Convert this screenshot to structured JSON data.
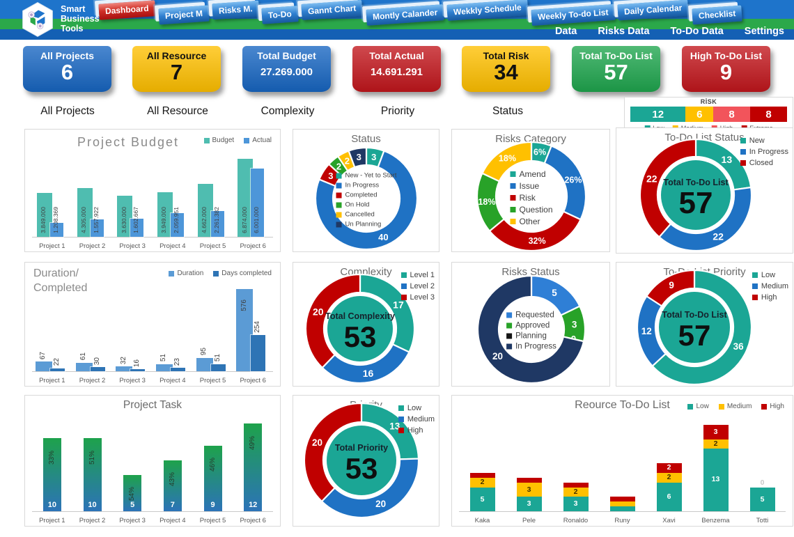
{
  "header": {
    "logo": {
      "line1": "Smart",
      "line2": "Business",
      "line3": "Tools"
    },
    "nav_buttons": [
      {
        "label": "Dashboard",
        "active": true
      },
      {
        "label": "Project M"
      },
      {
        "label": "Risks M."
      },
      {
        "label": "To-Do"
      },
      {
        "label": "Gannt Chart"
      },
      {
        "label": "Montly Calander"
      },
      {
        "label": "Wekkly Schedule"
      },
      {
        "label": "Weekly To-do List"
      },
      {
        "label": "Daily Calendar"
      },
      {
        "label": "Checklist"
      }
    ],
    "sub_links": [
      "Data",
      "Risks Data",
      "To-Do Data",
      "Settings"
    ]
  },
  "kpi_cards": [
    {
      "title": "All Projects",
      "value": "6",
      "color": "#1766C2",
      "text_color": "#ffffff"
    },
    {
      "title": "All Resource",
      "value": "7",
      "color": "#FFC000",
      "text_color": "#111111"
    },
    {
      "title": "Total Budget",
      "value": "27.269.000",
      "color": "#1766C2",
      "text_color": "#ffffff"
    },
    {
      "title": "Total Actual",
      "value": "14.691.291",
      "color": "#C2161C",
      "text_color": "#ffffff"
    },
    {
      "title": "Total Risk",
      "value": "34",
      "color": "#FFC000",
      "text_color": "#111111"
    },
    {
      "title": "Total To-Do List",
      "value": "57",
      "color": "#1FA64E",
      "text_color": "#ffffff"
    },
    {
      "title": "High To-Do List",
      "value": "9",
      "color": "#C2161C",
      "text_color": "#ffffff"
    }
  ],
  "slicer_labels": [
    "All Projects",
    "All Resource",
    "Complexity",
    "Priority",
    "Status"
  ],
  "chart_data": [
    {
      "id": "risk-mini",
      "type": "bar",
      "subtype": "stacked-horizontal",
      "title": "RİSK",
      "categories": [
        "Risk"
      ],
      "series": [
        {
          "name": "Low",
          "color": "#1BA695",
          "values": [
            12
          ]
        },
        {
          "name": "Medium",
          "color": "#FFC000",
          "values": [
            6
          ]
        },
        {
          "name": "High",
          "color": "#F2545B",
          "values": [
            8
          ]
        },
        {
          "name": "Extreme",
          "color": "#C00000",
          "values": [
            8
          ]
        }
      ],
      "legend_position": "bottom"
    },
    {
      "id": "project-budget",
      "type": "bar",
      "subtype": "grouped",
      "title": "Project Budget",
      "categories": [
        "Project 1",
        "Project 2",
        "Project 3",
        "Project 4",
        "Project 5",
        "Project 6"
      ],
      "series": [
        {
          "name": "Budget",
          "color": "#4FBDB0",
          "values": [
            3849000,
            4305000,
            3630000,
            3949000,
            4662000,
            6874000
          ],
          "labels": [
            "3.849.000",
            "4.305.000",
            "3.630.000",
            "3.949.000",
            "4.662.000",
            "6.874.000"
          ]
        },
        {
          "name": "Actual",
          "color": "#4D96D9",
          "values": [
            1208369,
            1557922,
            1602667,
            2059951,
            2261382,
            6001000
          ],
          "labels": [
            "1.208.369",
            "1.557.922",
            "1.602.667",
            "2.059.951",
            "2.261.382",
            "6.001.000"
          ]
        }
      ],
      "legend_position": "top-right"
    },
    {
      "id": "status",
      "type": "donut",
      "title": "Status",
      "segments": [
        {
          "label": "New - Yet to Start",
          "value": 3,
          "color": "#1BA695"
        },
        {
          "label": "In Progress",
          "value": 40,
          "color": "#1F72C4"
        },
        {
          "label": "Completed",
          "value": 3,
          "color": "#C00000"
        },
        {
          "label": "On Hold",
          "value": 2,
          "color": "#28A228"
        },
        {
          "label": "Cancelled",
          "value": 2,
          "color": "#FFC000"
        },
        {
          "label": "Un Planning",
          "value": 3,
          "color": "#1F3864"
        }
      ],
      "legend_position": "inside"
    },
    {
      "id": "risks-category",
      "type": "donut",
      "title": "Risks Category",
      "segments": [
        {
          "label": "Amend",
          "value": 6,
          "color": "#1BA695",
          "text": "6%"
        },
        {
          "label": "Issue",
          "value": 26,
          "color": "#1F72C4",
          "text": "26%"
        },
        {
          "label": "Risk",
          "value": 32,
          "color": "#C00000",
          "text": "32%"
        },
        {
          "label": "Question",
          "value": 18,
          "color": "#28A228",
          "text": "18%"
        },
        {
          "label": "Other",
          "value": 18,
          "color": "#FFC000",
          "text": "18%"
        }
      ],
      "legend_position": "inside"
    },
    {
      "id": "todo-status",
      "type": "donut",
      "title": "To-Do List Status",
      "segments": [
        {
          "label": "New",
          "value": 13,
          "color": "#1BA695"
        },
        {
          "label": "In Progress",
          "value": 22,
          "color": "#1F72C4"
        },
        {
          "label": "Closed",
          "value": 22,
          "color": "#C00000"
        }
      ],
      "center": {
        "title": "Total To-Do List",
        "value": "57",
        "fill": "#1BA695"
      },
      "legend_position": "right"
    },
    {
      "id": "duration",
      "type": "bar",
      "subtype": "grouped",
      "title": "Duration/Completed",
      "title_lines": [
        "Duration/",
        "Completed"
      ],
      "categories": [
        "Project 1",
        "Project 2",
        "Project 3",
        "Project 4",
        "Project 5",
        "Project 6"
      ],
      "series": [
        {
          "name": "Duration",
          "color": "#5B9BD5",
          "values": [
            67,
            61,
            32,
            51,
            95,
            576
          ]
        },
        {
          "name": "Days completed",
          "color": "#2E74B5",
          "values": [
            22,
            30,
            16,
            23,
            51,
            254
          ]
        }
      ],
      "legend_position": "top-right"
    },
    {
      "id": "complexity",
      "type": "donut",
      "title": "Complexity",
      "segments": [
        {
          "label": "Level 1",
          "value": 17,
          "color": "#1BA695"
        },
        {
          "label": "Level 2",
          "value": 16,
          "color": "#1F72C4"
        },
        {
          "label": "Level 3",
          "value": 20,
          "color": "#C00000"
        }
      ],
      "center": {
        "title": "Total Complexity",
        "value": "53",
        "fill": "#1BA695"
      },
      "legend_position": "right"
    },
    {
      "id": "risks-status",
      "type": "donut",
      "title": "Risks Status",
      "segments": [
        {
          "label": "Requested",
          "value": 5,
          "color": "#2F7FD6"
        },
        {
          "label": "Approved",
          "value": 3,
          "color": "#28A228"
        },
        {
          "label": "Planning",
          "value": 0,
          "color": "#151515"
        },
        {
          "label": "In Progress",
          "value": 20,
          "color": "#1F3864"
        }
      ],
      "legend_position": "inside"
    },
    {
      "id": "todo-priority",
      "type": "donut",
      "title": "To-Do List Priority",
      "segments": [
        {
          "label": "Low",
          "value": 36,
          "color": "#1BA695"
        },
        {
          "label": "Medium",
          "value": 12,
          "color": "#1F72C4"
        },
        {
          "label": "High",
          "value": 9,
          "color": "#C00000"
        }
      ],
      "center": {
        "title": "Total To-Do List",
        "value": "57",
        "fill": "#1BA695"
      },
      "legend_position": "right"
    },
    {
      "id": "project-task",
      "type": "bar",
      "subtype": "gradient",
      "title": "Project Task",
      "categories": [
        "Project 1",
        "Project 2",
        "Project 3",
        "Project 4",
        "Project 5",
        "Project 6"
      ],
      "values": [
        10,
        10,
        5,
        7,
        9,
        12
      ],
      "percent_labels": [
        "33%",
        "51%",
        "54%",
        "43%",
        "46%",
        "49%"
      ],
      "gradient_top": "#1EA24B",
      "gradient_bottom": "#2C73B8"
    },
    {
      "id": "priority",
      "type": "donut",
      "title": "Priority",
      "segments": [
        {
          "label": "Low",
          "value": 13,
          "color": "#1BA695"
        },
        {
          "label": "Medium",
          "value": 20,
          "color": "#1F72C4"
        },
        {
          "label": "High",
          "value": 20,
          "color": "#C00000"
        }
      ],
      "center": {
        "title": "Total Priority",
        "value": "53",
        "fill": "#1BA695"
      },
      "legend_position": "right"
    },
    {
      "id": "resource-todo",
      "type": "bar",
      "subtype": "stacked",
      "title": "Reource To-Do List",
      "categories": [
        "Kaka",
        "Pele",
        "Ronaldo",
        "Runy",
        "Xavi",
        "Benzema",
        "Totti"
      ],
      "series": [
        {
          "name": "Low",
          "color": "#1BA695",
          "values": [
            5,
            3,
            3,
            1,
            6,
            13,
            5
          ]
        },
        {
          "name": "Medium",
          "color": "#FFC000",
          "values": [
            2,
            3,
            2,
            1,
            2,
            2,
            0
          ]
        },
        {
          "name": "High",
          "color": "#C00000",
          "values": [
            1,
            1,
            1,
            1,
            2,
            3,
            0
          ]
        }
      ],
      "legend_position": "top-right"
    }
  ]
}
